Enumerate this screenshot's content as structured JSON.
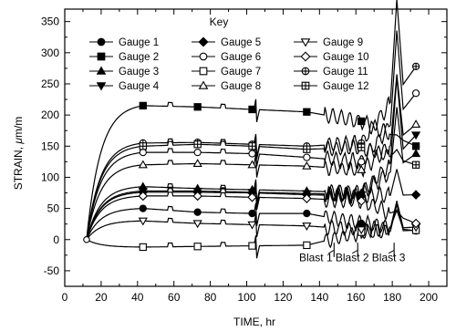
{
  "chart_data": {
    "type": "line",
    "xlabel": "TIME, hr",
    "ylabel": "STRAIN, μm/m",
    "ylabel_prefix": "STRAIN, ",
    "ylabel_mu": "μ",
    "ylabel_suffix": "m/m",
    "xlim": [
      0,
      210
    ],
    "ylim": [
      -75,
      370
    ],
    "xticks": [
      0,
      20,
      40,
      60,
      80,
      100,
      120,
      140,
      160,
      180,
      200
    ],
    "yticks": [
      -50,
      0,
      50,
      100,
      150,
      200,
      250,
      300,
      350
    ],
    "grid": false,
    "legend_title": "Key",
    "legend_position": "top-center",
    "marker_x": [
      43,
      73,
      103,
      133,
      163,
      193
    ],
    "series": [
      {
        "name": "Gauge 1",
        "marker": "filled-circle",
        "values": [
          50,
          44,
          42,
          42,
          26,
          14
        ]
      },
      {
        "name": "Gauge 2",
        "marker": "filled-square",
        "values": [
          215,
          213,
          209,
          205,
          190,
          150
        ]
      },
      {
        "name": "Gauge 3",
        "marker": "filled-triangle-up",
        "values": [
          85,
          82,
          80,
          78,
          75,
          138
        ]
      },
      {
        "name": "Gauge 4",
        "marker": "filled-triangle-down",
        "values": [
          78,
          78,
          76,
          74,
          72,
          168
        ]
      },
      {
        "name": "Gauge 5",
        "marker": "filled-diamond",
        "values": [
          76,
          76,
          75,
          72,
          70,
          72
        ]
      },
      {
        "name": "Gauge 6",
        "marker": "open-circle",
        "values": [
          140,
          140,
          138,
          132,
          125,
          235
        ]
      },
      {
        "name": "Gauge 7",
        "marker": "open-square",
        "values": [
          -12,
          -11,
          -10,
          -9,
          12,
          15
        ]
      },
      {
        "name": "Gauge 8",
        "marker": "open-triangle-up",
        "values": [
          120,
          122,
          120,
          118,
          112,
          185
        ]
      },
      {
        "name": "Gauge 9",
        "marker": "open-triangle-down",
        "values": [
          30,
          26,
          24,
          22,
          16,
          20
        ]
      },
      {
        "name": "Gauge 10",
        "marker": "open-diamond",
        "values": [
          70,
          70,
          68,
          66,
          62,
          26
        ]
      },
      {
        "name": "Gauge 11",
        "marker": "circle-plus",
        "values": [
          155,
          156,
          153,
          150,
          155,
          278
        ]
      },
      {
        "name": "Gauge 12",
        "marker": "square-plus",
        "values": [
          150,
          153,
          150,
          145,
          148,
          120
        ]
      }
    ],
    "annotations": [
      {
        "text": "Blast 1",
        "x": 148
      },
      {
        "text": "Blast 2",
        "x": 161
      },
      {
        "text": "Blast 3",
        "x": 181
      }
    ]
  }
}
